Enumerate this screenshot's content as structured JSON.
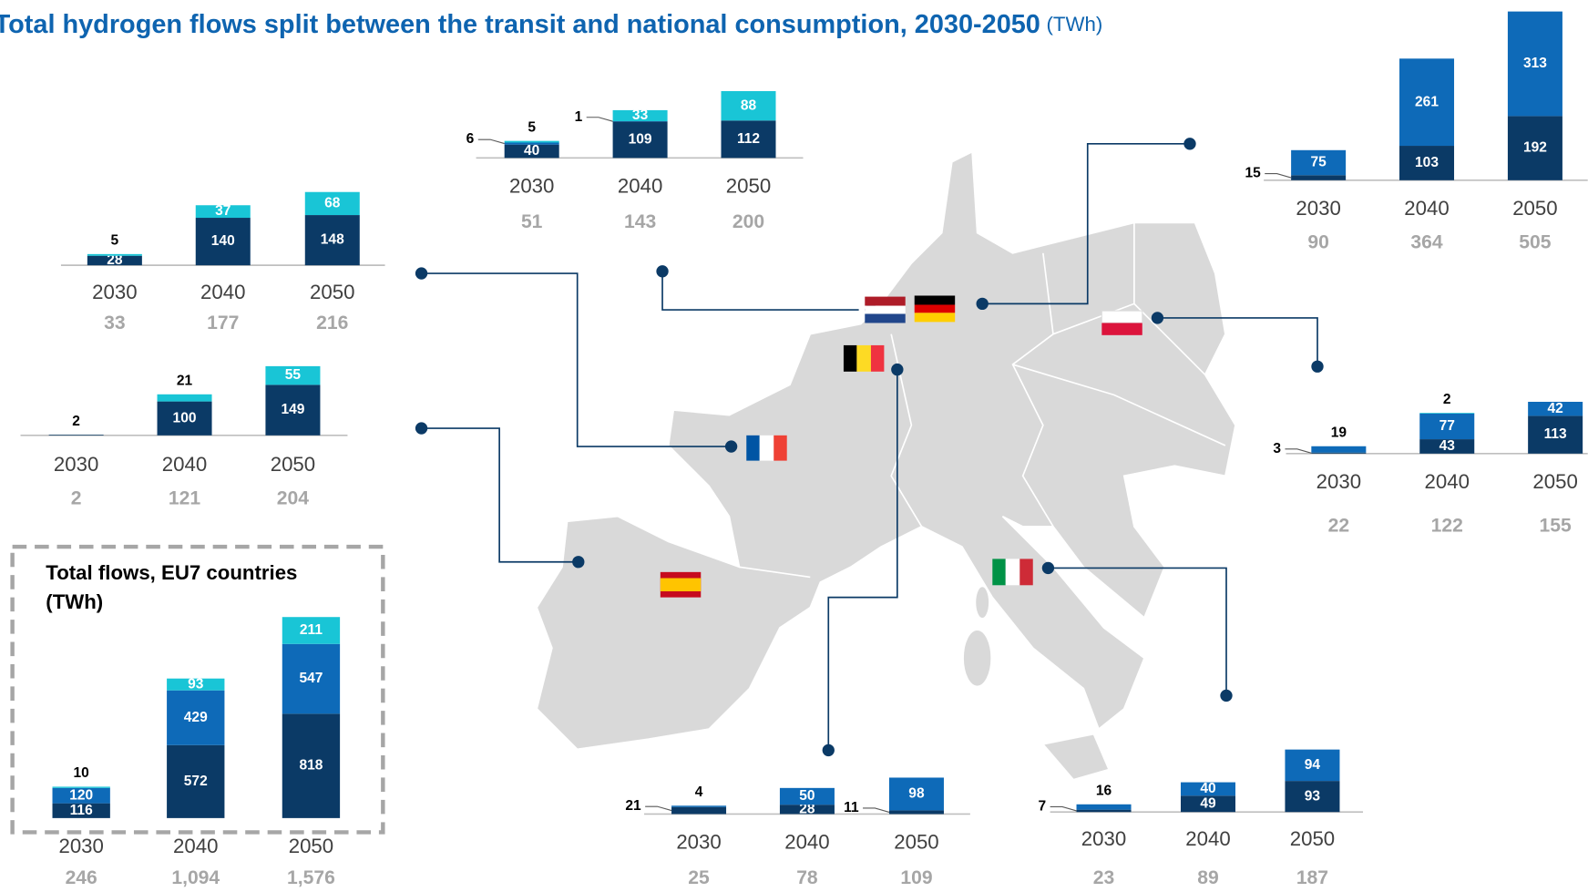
{
  "title": "Total hydrogen flows split between the transit and national consumption, 2030-2050",
  "title_unit": "(TWh)",
  "chart_data": [
    {
      "type": "bar",
      "stacked": true,
      "categories": [
        "2030",
        "2040",
        "2050"
      ],
      "series": [
        {
          "color": "#0b3a66",
          "values": [
            28,
            140,
            148
          ]
        },
        {
          "color": "#19c5d6",
          "values": [
            5,
            37,
            68
          ]
        }
      ],
      "totals": [
        33,
        177,
        216
      ]
    },
    {
      "type": "bar",
      "stacked": true,
      "categories": [
        "2030",
        "2040",
        "2050"
      ],
      "series": [
        {
          "color": "#0b3a66",
          "values": [
            2,
            100,
            149
          ]
        },
        {
          "color": "#19c5d6",
          "values": [
            null,
            21,
            55
          ]
        }
      ],
      "totals": [
        2,
        121,
        204
      ]
    },
    {
      "type": "bar",
      "stacked": true,
      "title": "Total flows, EU7 countries",
      "subtitle": "(TWh)",
      "categories": [
        "2030",
        "2040",
        "2050"
      ],
      "series": [
        {
          "color": "#0b3a66",
          "values": [
            116,
            572,
            818
          ]
        },
        {
          "color": "#0e6ab8",
          "values": [
            120,
            429,
            547
          ]
        },
        {
          "color": "#19c5d6",
          "values": [
            10,
            93,
            211
          ]
        }
      ],
      "totals": [
        246,
        1094,
        1576
      ],
      "total_labels": [
        "246",
        "1,094",
        "1,576"
      ]
    },
    {
      "type": "bar",
      "stacked": true,
      "categories": [
        "2030",
        "2040",
        "2050"
      ],
      "series": [
        {
          "color": "#0b3a66",
          "values": [
            40,
            109,
            112
          ]
        },
        {
          "color": "#0e6ab8",
          "values": [
            6,
            1,
            null
          ]
        },
        {
          "color": "#19c5d6",
          "values": [
            5,
            33,
            88
          ]
        }
      ],
      "totals": [
        51,
        143,
        200
      ]
    },
    {
      "type": "bar",
      "stacked": true,
      "categories": [
        "2030",
        "2040",
        "2050"
      ],
      "series": [
        {
          "color": "#0b3a66",
          "values": [
            15,
            103,
            192
          ]
        },
        {
          "color": "#0e6ab8",
          "values": [
            75,
            261,
            313
          ]
        }
      ],
      "totals": [
        90,
        364,
        505
      ]
    },
    {
      "type": "bar",
      "stacked": true,
      "categories": [
        "2030",
        "2040",
        "2050"
      ],
      "series": [
        {
          "color": "#0b3a66",
          "values": [
            3,
            43,
            113
          ]
        },
        {
          "color": "#0e6ab8",
          "values": [
            19,
            77,
            42
          ]
        },
        {
          "color": "#19c5d6",
          "values": [
            null,
            2,
            null
          ]
        }
      ],
      "totals": [
        22,
        122,
        155
      ]
    },
    {
      "type": "bar",
      "stacked": true,
      "categories": [
        "2030",
        "2040",
        "2050"
      ],
      "series": [
        {
          "color": "#0b3a66",
          "values": [
            21,
            28,
            11
          ]
        },
        {
          "color": "#0e6ab8",
          "values": [
            4,
            50,
            98
          ]
        }
      ],
      "totals": [
        25,
        78,
        109
      ]
    },
    {
      "type": "bar",
      "stacked": true,
      "categories": [
        "2030",
        "2040",
        "2050"
      ],
      "series": [
        {
          "color": "#0b3a66",
          "values": [
            7,
            49,
            93
          ]
        },
        {
          "color": "#0e6ab8",
          "values": [
            16,
            40,
            94
          ]
        }
      ],
      "totals": [
        23,
        89,
        187
      ]
    }
  ]
}
